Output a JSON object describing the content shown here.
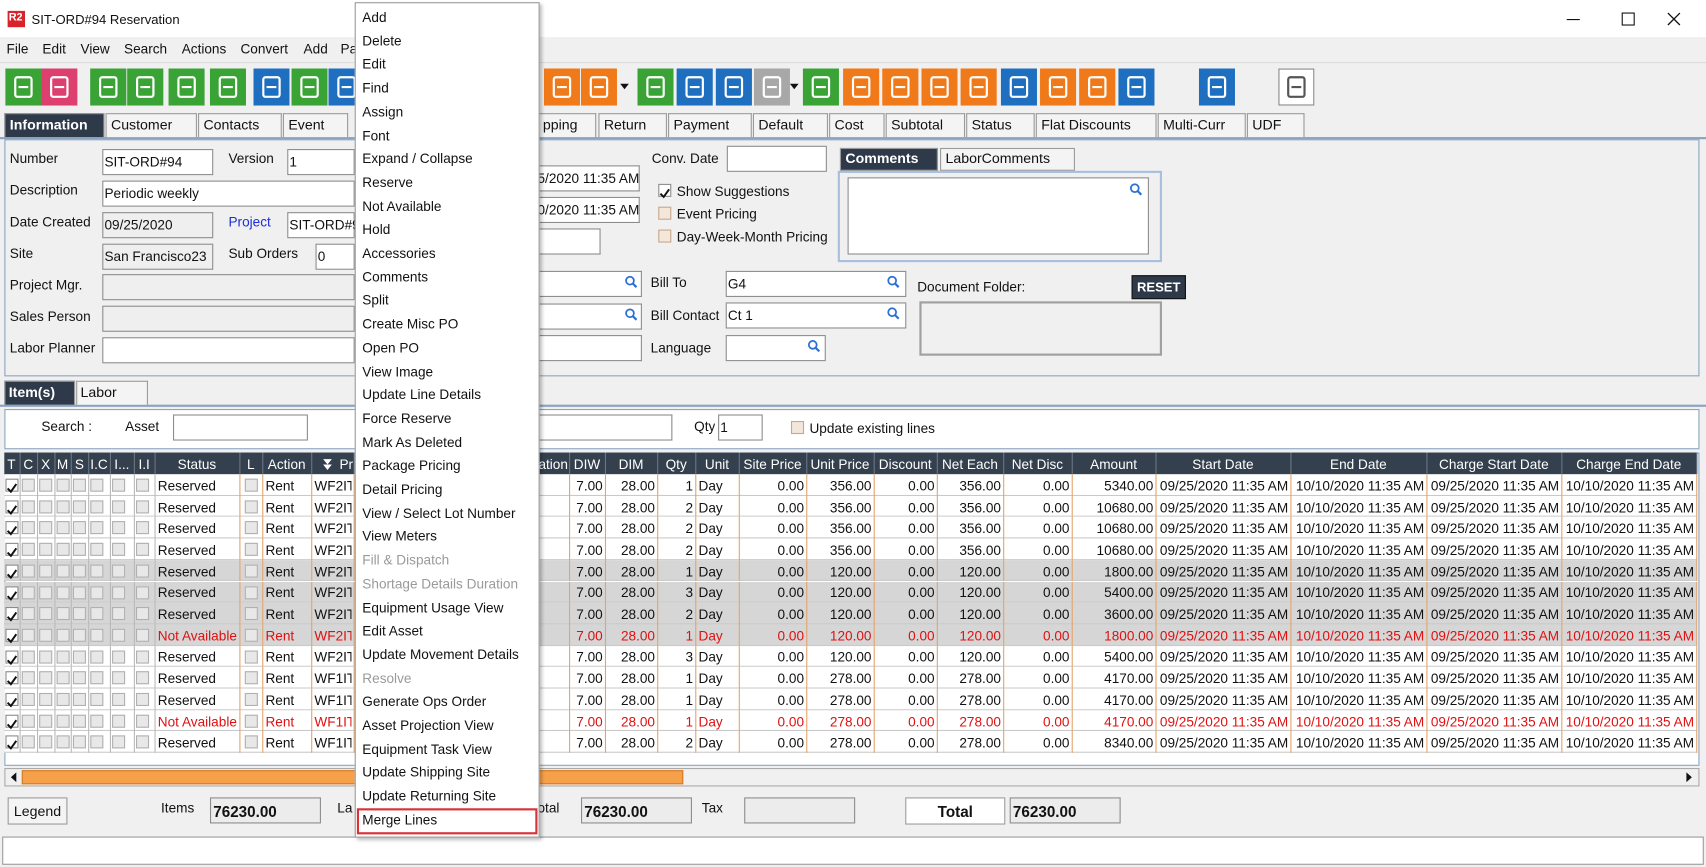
{
  "window": {
    "icon": "R2",
    "title": "SIT-ORD#94 Reservation"
  },
  "menu_bar": [
    "File",
    "Edit",
    "View",
    "Search",
    "Actions",
    "Convert",
    "Add",
    "Pa"
  ],
  "main_tabs": [
    "Information",
    "Customer",
    "Contacts",
    "Event",
    "pping",
    "Return",
    "Payment",
    "Default",
    "Cost",
    "Subtotal",
    "Status",
    "Flat Discounts",
    "Multi-Curr",
    "UDF"
  ],
  "form": {
    "number": {
      "label": "Number",
      "value": "SIT-ORD#94"
    },
    "version": {
      "label": "Version",
      "value": "1"
    },
    "description": {
      "label": "Description",
      "value": "Periodic weekly"
    },
    "date_created": {
      "label": "Date Created",
      "value": "09/25/2020"
    },
    "project": {
      "label": "Project",
      "value": "SIT-ORD#9"
    },
    "site": {
      "label": "Site",
      "value": "San Francisco23"
    },
    "sub_orders": {
      "label": "Sub Orders",
      "value": "0"
    },
    "project_mgr": {
      "label": "Project Mgr."
    },
    "sales_person": {
      "label": "Sales Person"
    },
    "labor_planner": {
      "label": "Labor Planner"
    },
    "partial_dates": [
      "5/2020 11:35 AM",
      "0/2020 11:35 AM"
    ],
    "conv_date": {
      "label": "Conv. Date"
    },
    "options": [
      {
        "label": "Show Suggestions",
        "checked": true
      },
      {
        "label": "Event Pricing",
        "checked": false
      },
      {
        "label": "Day-Week-Month Pricing",
        "checked": false
      }
    ],
    "comment_tabs": [
      "Comments",
      "LaborComments"
    ],
    "bill_to": {
      "label": "Bill To",
      "value": "G4"
    },
    "bill_contact": {
      "label": "Bill Contact",
      "value": "Ct 1"
    },
    "language": {
      "label": "Language"
    },
    "document_folder": {
      "label": "Document Folder:",
      "button": "RESET"
    }
  },
  "item_tabs": [
    "Item(s)",
    "Labor"
  ],
  "search": {
    "label": "Search :",
    "asset_label": "Asset",
    "qty_label": "Qty",
    "qty_value": "1",
    "update_label": "Update existing lines"
  },
  "grid": {
    "columns": [
      "T",
      "C",
      "X",
      "M",
      "S",
      "I.C",
      "I...",
      "I.I",
      "Status",
      "L",
      "Action",
      "Pr",
      "ation",
      "DIW",
      "DIM",
      "Qty",
      "Unit",
      "Site Price",
      "Unit Price",
      "Discount",
      "Net Each",
      "Net Disc",
      "Amount",
      "Start Date",
      "End Date",
      "Charge Start Date",
      "Charge End Date"
    ],
    "rows": [
      {
        "cells": [
          "Reserved",
          "Rent",
          "WF2IT",
          "7.00",
          "28.00",
          "1",
          "Day",
          "0.00",
          "356.00",
          "0.00",
          "356.00",
          "0.00",
          "5340.00",
          "09/25/2020 11:35 AM",
          "10/10/2020 11:35 AM",
          "09/25/2020 11:35 AM",
          "10/10/2020 11:35 AM"
        ]
      },
      {
        "cells": [
          "Reserved",
          "Rent",
          "WF2IT",
          "7.00",
          "28.00",
          "2",
          "Day",
          "0.00",
          "356.00",
          "0.00",
          "356.00",
          "0.00",
          "10680.00",
          "09/25/2020 11:35 AM",
          "10/10/2020 11:35 AM",
          "09/25/2020 11:35 AM",
          "10/10/2020 11:35 AM"
        ]
      },
      {
        "cells": [
          "Reserved",
          "Rent",
          "WF2IT",
          "7.00",
          "28.00",
          "2",
          "Day",
          "0.00",
          "356.00",
          "0.00",
          "356.00",
          "0.00",
          "10680.00",
          "09/25/2020 11:35 AM",
          "10/10/2020 11:35 AM",
          "09/25/2020 11:35 AM",
          "10/10/2020 11:35 AM"
        ]
      },
      {
        "cells": [
          "Reserved",
          "Rent",
          "WF2IT",
          "7.00",
          "28.00",
          "2",
          "Day",
          "0.00",
          "356.00",
          "0.00",
          "356.00",
          "0.00",
          "10680.00",
          "09/25/2020 11:35 AM",
          "10/10/2020 11:35 AM",
          "09/25/2020 11:35 AM",
          "10/10/2020 11:35 AM"
        ]
      },
      {
        "cells": [
          "Reserved",
          "Rent",
          "WF2IT",
          "7.00",
          "28.00",
          "1",
          "Day",
          "0.00",
          "120.00",
          "0.00",
          "120.00",
          "0.00",
          "1800.00",
          "09/25/2020 11:35 AM",
          "10/10/2020 11:35 AM",
          "09/25/2020 11:35 AM",
          "10/10/2020 11:35 AM"
        ],
        "background": "#d6d6d6"
      },
      {
        "cells": [
          "Reserved",
          "Rent",
          "WF2IT",
          "7.00",
          "28.00",
          "3",
          "Day",
          "0.00",
          "120.00",
          "0.00",
          "120.00",
          "0.00",
          "5400.00",
          "09/25/2020 11:35 AM",
          "10/10/2020 11:35 AM",
          "09/25/2020 11:35 AM",
          "10/10/2020 11:35 AM"
        ],
        "background": "#d6d6d6"
      },
      {
        "cells": [
          "Reserved",
          "Rent",
          "WF2IT",
          "7.00",
          "28.00",
          "2",
          "Day",
          "0.00",
          "120.00",
          "0.00",
          "120.00",
          "0.00",
          "3600.00",
          "09/25/2020 11:35 AM",
          "10/10/2020 11:35 AM",
          "09/25/2020 11:35 AM",
          "10/10/2020 11:35 AM"
        ],
        "background": "#d6d6d6"
      },
      {
        "cells": [
          "Not Available",
          "Rent",
          "WF2IT",
          "7.00",
          "28.00",
          "1",
          "Day",
          "0.00",
          "120.00",
          "0.00",
          "120.00",
          "0.00",
          "1800.00",
          "09/25/2020 11:35 AM",
          "10/10/2020 11:35 AM",
          "09/25/2020 11:35 AM",
          "10/10/2020 11:35 AM"
        ],
        "background": "#d6d6d6",
        "color": "#e01010"
      },
      {
        "cells": [
          "Reserved",
          "Rent",
          "WF2IT",
          "7.00",
          "28.00",
          "3",
          "Day",
          "0.00",
          "120.00",
          "0.00",
          "120.00",
          "0.00",
          "5400.00",
          "09/25/2020 11:35 AM",
          "10/10/2020 11:35 AM",
          "09/25/2020 11:35 AM",
          "10/10/2020 11:35 AM"
        ]
      },
      {
        "cells": [
          "Reserved",
          "Rent",
          "WF1IT",
          "7.00",
          "28.00",
          "1",
          "Day",
          "0.00",
          "278.00",
          "0.00",
          "278.00",
          "0.00",
          "4170.00",
          "09/25/2020 11:35 AM",
          "10/10/2020 11:35 AM",
          "09/25/2020 11:35 AM",
          "10/10/2020 11:35 AM"
        ]
      },
      {
        "cells": [
          "Reserved",
          "Rent",
          "WF1IT",
          "7.00",
          "28.00",
          "1",
          "Day",
          "0.00",
          "278.00",
          "0.00",
          "278.00",
          "0.00",
          "4170.00",
          "09/25/2020 11:35 AM",
          "10/10/2020 11:35 AM",
          "09/25/2020 11:35 AM",
          "10/10/2020 11:35 AM"
        ]
      },
      {
        "cells": [
          "Not Available",
          "Rent",
          "WF1IT",
          "7.00",
          "28.00",
          "1",
          "Day",
          "0.00",
          "278.00",
          "0.00",
          "278.00",
          "0.00",
          "4170.00",
          "09/25/2020 11:35 AM",
          "10/10/2020 11:35 AM",
          "09/25/2020 11:35 AM",
          "10/10/2020 11:35 AM"
        ],
        "color": "#e01010"
      },
      {
        "cells": [
          "Reserved",
          "Rent",
          "WF1IT",
          "7.00",
          "28.00",
          "2",
          "Day",
          "0.00",
          "278.00",
          "0.00",
          "278.00",
          "0.00",
          "8340.00",
          "09/25/2020 11:35 AM",
          "10/10/2020 11:35 AM",
          "09/25/2020 11:35 AM",
          "10/10/2020 11:35 AM"
        ]
      }
    ]
  },
  "footer": {
    "legend": "Legend",
    "items_label": "Items",
    "items_value": "76230.00",
    "la_label": "La",
    "subtotal_label": "otal",
    "subtotal_value": "76230.00",
    "tax_label": "Tax",
    "total_label": "Total",
    "total_value": "76230.00"
  },
  "context_menu": [
    {
      "label": "Add"
    },
    {
      "label": "Delete"
    },
    {
      "label": "Edit"
    },
    {
      "label": "Find"
    },
    {
      "label": "Assign"
    },
    {
      "label": "Font"
    },
    {
      "label": "Expand / Collapse"
    },
    {
      "label": "Reserve"
    },
    {
      "label": "Not Available"
    },
    {
      "label": "Hold"
    },
    {
      "label": "Accessories"
    },
    {
      "label": "Comments"
    },
    {
      "label": "Split"
    },
    {
      "label": "Create Misc PO"
    },
    {
      "label": "Open PO"
    },
    {
      "label": "View Image"
    },
    {
      "label": "Update Line Details"
    },
    {
      "label": "Force Reserve"
    },
    {
      "label": "Mark As Deleted"
    },
    {
      "label": "Package Pricing"
    },
    {
      "label": "Detail Pricing"
    },
    {
      "label": "View / Select Lot Number"
    },
    {
      "label": "View Meters"
    },
    {
      "label": "Fill & Dispatch",
      "enabled": false
    },
    {
      "label": "Shortage Details Duration",
      "enabled": false
    },
    {
      "label": "Equipment Usage View"
    },
    {
      "label": "Edit Asset"
    },
    {
      "label": "Update Movement Details"
    },
    {
      "label": "Resolve",
      "enabled": false
    },
    {
      "label": "Generate Ops Order"
    },
    {
      "label": "Asset Projection View"
    },
    {
      "label": "Equipment Task View"
    },
    {
      "label": "Update Shipping Site"
    },
    {
      "label": "Update Returning Site"
    },
    {
      "label": "Merge Lines",
      "selected": true
    }
  ]
}
